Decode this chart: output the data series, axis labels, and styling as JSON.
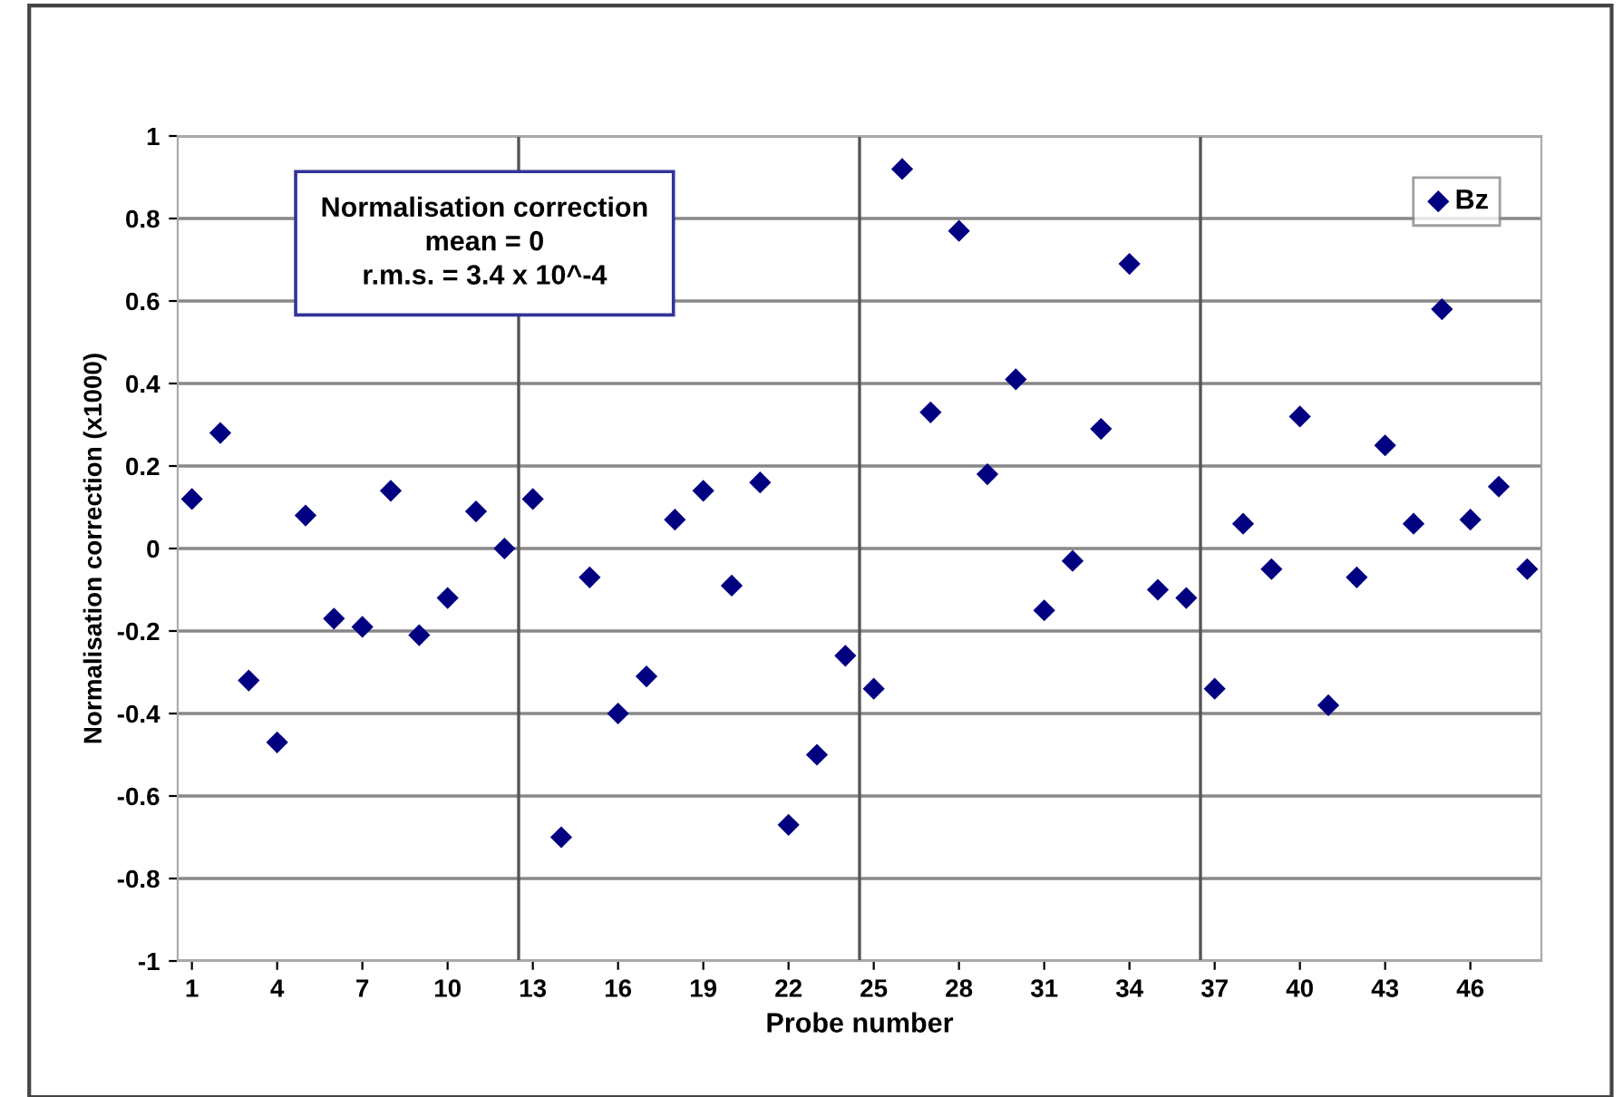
{
  "chart_data": {
    "type": "scatter",
    "xlabel": "Probe number",
    "ylabel": "Normalisation correction (x1000)",
    "annotations": [
      "Normalisation correction\nmean = 0\nr.m.s. = 3.4 x 10^-4"
    ],
    "x": [
      1,
      2,
      3,
      4,
      5,
      6,
      7,
      8,
      9,
      10,
      11,
      12,
      13,
      14,
      15,
      16,
      17,
      18,
      19,
      20,
      21,
      22,
      23,
      24,
      25,
      26,
      27,
      28,
      29,
      30,
      31,
      32,
      33,
      34,
      35,
      36,
      37,
      38,
      39,
      40,
      41,
      42,
      43,
      44,
      45,
      46,
      47,
      48
    ],
    "series": [
      {
        "name": "Bz",
        "color": "#000080",
        "values": [
          0.12,
          0.28,
          -0.32,
          -0.47,
          0.08,
          -0.17,
          -0.19,
          0.14,
          -0.21,
          -0.12,
          0.09,
          0.0,
          0.12,
          -0.7,
          -0.07,
          -0.4,
          -0.31,
          0.07,
          0.14,
          -0.09,
          0.16,
          -0.67,
          -0.5,
          -0.26,
          -0.34,
          0.92,
          0.33,
          0.77,
          0.18,
          0.41,
          -0.15,
          -0.03,
          0.29,
          0.69,
          -0.1,
          -0.12,
          -0.34,
          0.06,
          -0.05,
          0.32,
          -0.38,
          -0.07,
          0.25,
          0.06,
          0.58,
          0.07,
          0.15,
          -0.05
        ]
      }
    ],
    "xlim": [
      0.5,
      48.5
    ],
    "xticks": [
      1,
      4,
      7,
      10,
      13,
      16,
      19,
      22,
      25,
      28,
      31,
      34,
      37,
      40,
      43,
      46
    ],
    "ylim": [
      -1,
      1
    ],
    "yticks": [
      -1,
      -0.8,
      -0.6,
      -0.4,
      -0.2,
      0,
      0.2,
      0.4,
      0.6,
      0.8,
      1
    ],
    "ref_lines": [
      {
        "axis": "x",
        "value": 12.5,
        "label": null,
        "color": "#555555"
      },
      {
        "axis": "x",
        "value": 24.5,
        "label": null,
        "color": "#555555"
      },
      {
        "axis": "x",
        "value": 36.5,
        "label": null,
        "color": "#555555"
      }
    ],
    "grid": "y",
    "legend": "top right",
    "marker": "diamond"
  }
}
